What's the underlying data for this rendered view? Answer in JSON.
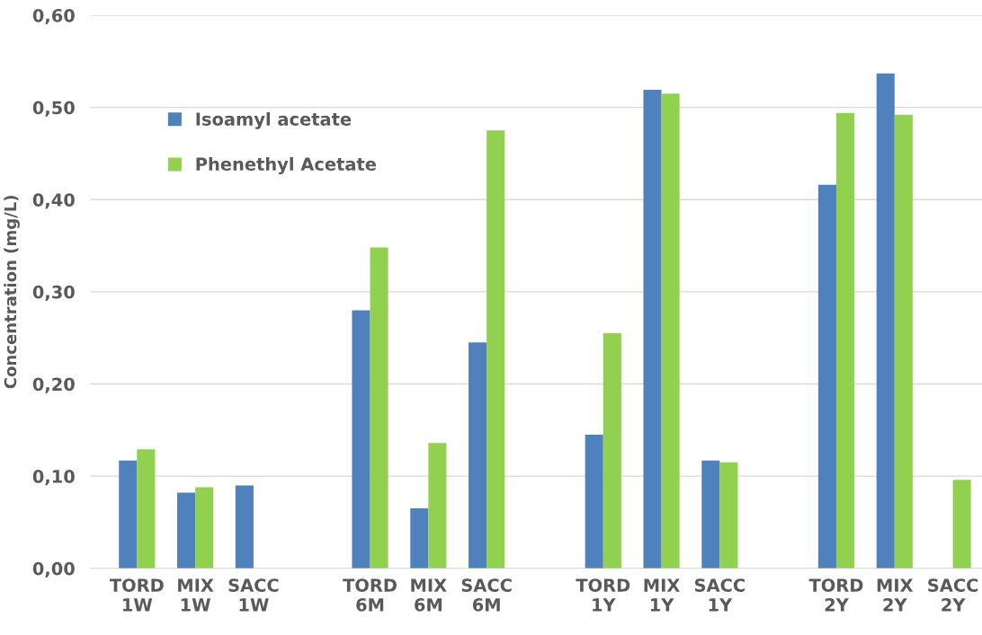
{
  "chart_data": {
    "type": "bar",
    "ylabel": "Concentration (mg/L)",
    "categories": [
      "TORD 1W",
      "MIX 1W",
      "SACC 1W",
      null,
      "TORD 6M",
      "MIX 6M",
      "SACC 6M",
      null,
      "TORD 1Y",
      "MIX 1Y",
      "SACC 1Y",
      null,
      "TORD 2Y",
      "MIX 2Y",
      "SACC 2Y"
    ],
    "series": [
      {
        "name": "Isoamyl acetate",
        "color": "#4f81bd",
        "values": [
          0.117,
          0.082,
          0.09,
          null,
          0.28,
          0.065,
          0.245,
          null,
          0.145,
          0.519,
          0.117,
          null,
          0.416,
          0.537,
          null
        ]
      },
      {
        "name": "Phenethyl Acetate",
        "color": "#92d050",
        "values": [
          0.129,
          0.088,
          null,
          null,
          0.348,
          0.136,
          0.475,
          null,
          0.255,
          0.515,
          0.115,
          null,
          0.494,
          0.492,
          0.096
        ]
      }
    ],
    "ylim": [
      0,
      0.6
    ],
    "yticks": [
      {
        "value": 0,
        "label": "0,00"
      },
      {
        "value": 0.1,
        "label": "0,10"
      },
      {
        "value": 0.2,
        "label": "0,20"
      },
      {
        "value": 0.3,
        "label": "0,30"
      },
      {
        "value": 0.4,
        "label": "0,40"
      },
      {
        "value": 0.5,
        "label": "0,50"
      },
      {
        "value": 0.6,
        "label": "0,60"
      }
    ],
    "grid": "y",
    "legend": "top left"
  }
}
